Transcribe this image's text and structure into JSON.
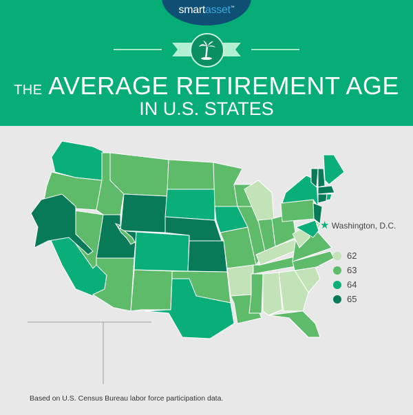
{
  "logo": {
    "part1": "smart",
    "part2": "asset",
    "tm": "™"
  },
  "title": {
    "prefix": "THE",
    "main": "AVERAGE RETIREMENT AGE",
    "sub": "IN U.S. STATES"
  },
  "badge_icon": "palm-tree-icon",
  "dc_label": "Washington, D.C.",
  "dc_value": 64,
  "legend": [
    {
      "label": "62",
      "color": "#c2e2b8"
    },
    {
      "label": "63",
      "color": "#5dbb6a"
    },
    {
      "label": "64",
      "color": "#0aae78"
    },
    {
      "label": "65",
      "color": "#087a58"
    }
  ],
  "states": {
    "WA": 64,
    "OR": 63,
    "CA": 64,
    "NV": 63,
    "ID": 63,
    "MT": 63,
    "WY": 65,
    "UT": 65,
    "AZ": 63,
    "CO": 64,
    "NM": 63,
    "ND": 63,
    "SD": 64,
    "NE": 65,
    "KS": 65,
    "OK": 63,
    "TX": 64,
    "MN": 63,
    "IA": 64,
    "MO": 63,
    "AR": 62,
    "LA": 63,
    "WI": 63,
    "IL": 63,
    "MI": 62,
    "IN": 63,
    "OH": 63,
    "KY": 62,
    "TN": 63,
    "MS": 63,
    "AL": 62,
    "GA": 62,
    "FL": 63,
    "SC": 62,
    "NC": 63,
    "VA": 63,
    "WV": 62,
    "PA": 63,
    "NY": 64,
    "VT": 65,
    "NH": 65,
    "ME": 64,
    "MA": 65,
    "CT": 65,
    "RI": 64,
    "NJ": 65,
    "DE": 62,
    "MD": 64,
    "AK": 65,
    "HI": 63
  },
  "footer": "Based on U.S. Census Bureau labor force participation data."
}
